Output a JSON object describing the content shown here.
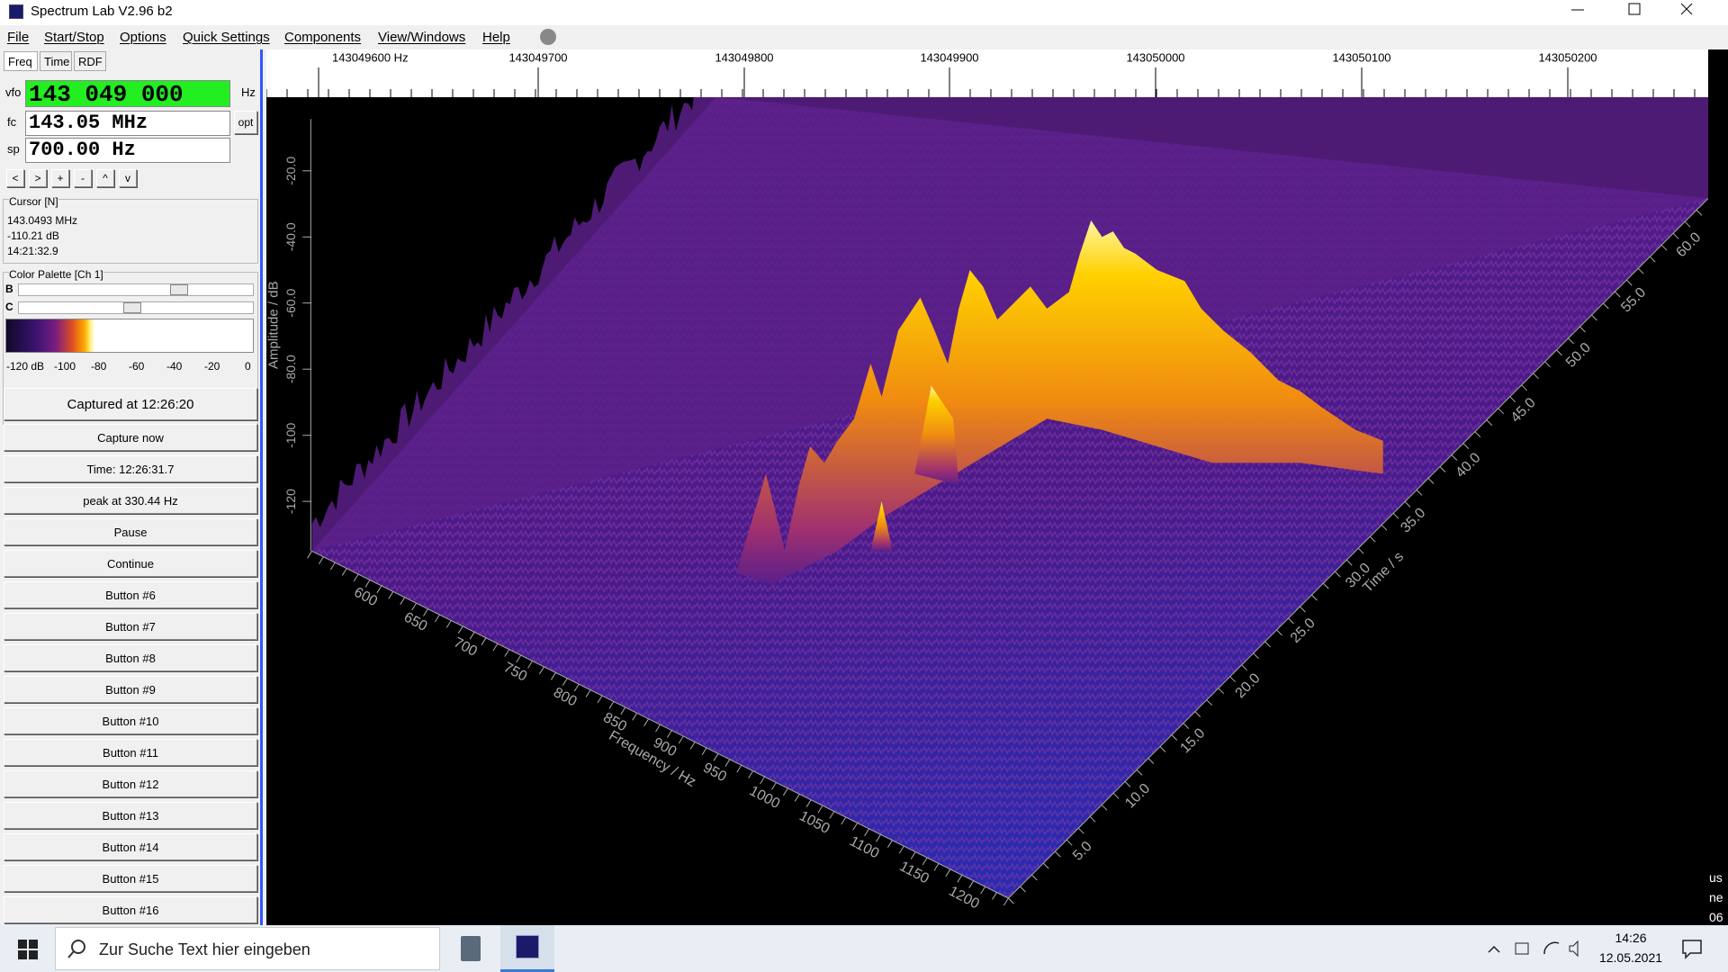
{
  "window": {
    "title": "Spectrum Lab V2.96 b2"
  },
  "menu": [
    "File",
    "Start/Stop",
    "Options",
    "Quick Settings",
    "Components",
    "View/Windows",
    "Help"
  ],
  "tabs": [
    "Freq",
    "Time",
    "RDF"
  ],
  "vfo": {
    "label": "vfo",
    "value": "143 049 000",
    "unit": "Hz"
  },
  "fc": {
    "label": "fc",
    "value": "143.05 MHz",
    "button": "opt"
  },
  "sp": {
    "label": "sp",
    "value": "700.00 Hz"
  },
  "nav_buttons": [
    "<",
    ">",
    "+",
    "-",
    "^",
    "v"
  ],
  "cursor": {
    "title": "Cursor [N]",
    "lines": [
      "143.0493 MHz",
      "-110.21 dB",
      "14:21:32.9"
    ]
  },
  "palette": {
    "title": "Color Palette [Ch 1]",
    "sliders": [
      "B",
      "C"
    ],
    "scale": [
      "-120 dB",
      "-100",
      "-80",
      "-60",
      "-40",
      "-20",
      "0"
    ]
  },
  "buttons": [
    "Captured at 12:26:20",
    "Capture now",
    "Time:  12:26:31.7",
    "peak at 330.44 Hz",
    "Pause",
    "Continue",
    "Button #6",
    "Button #7",
    "Button #8",
    "Button #9",
    "Button #10",
    "Button #11",
    "Button #12",
    "Button #13",
    "Button #14",
    "Button #15",
    "Button #16"
  ],
  "freq_ruler": [
    "143049600 Hz",
    "143049700",
    "143049800",
    "143049900",
    "143050000",
    "143050100",
    "143050200"
  ],
  "plot": {
    "amplitude_label": "Amplitude / dB",
    "amplitude_ticks": [
      "-20.0",
      "-40.0",
      "-60.0",
      "-80.0",
      "-100",
      "-120"
    ],
    "freq_label": "Frequency / Hz",
    "freq_ticks": [
      "600",
      "650",
      "700",
      "750",
      "800",
      "850",
      "900",
      "950",
      "1000",
      "1050",
      "1100",
      "1150",
      "1200"
    ],
    "time_label": "Time / s",
    "time_ticks": [
      "5.0",
      "10.0",
      "15.0",
      "20.0",
      "25.0",
      "30.0",
      "35.0",
      "40.0",
      "45.0",
      "50.0",
      "55.0",
      "60.0"
    ]
  },
  "taskbar": {
    "search": "Zur Suche Text hier eingeben",
    "time": "14:26",
    "date": "12.05.2021"
  },
  "side_strip": [
    "us",
    "ne",
    "06"
  ]
}
